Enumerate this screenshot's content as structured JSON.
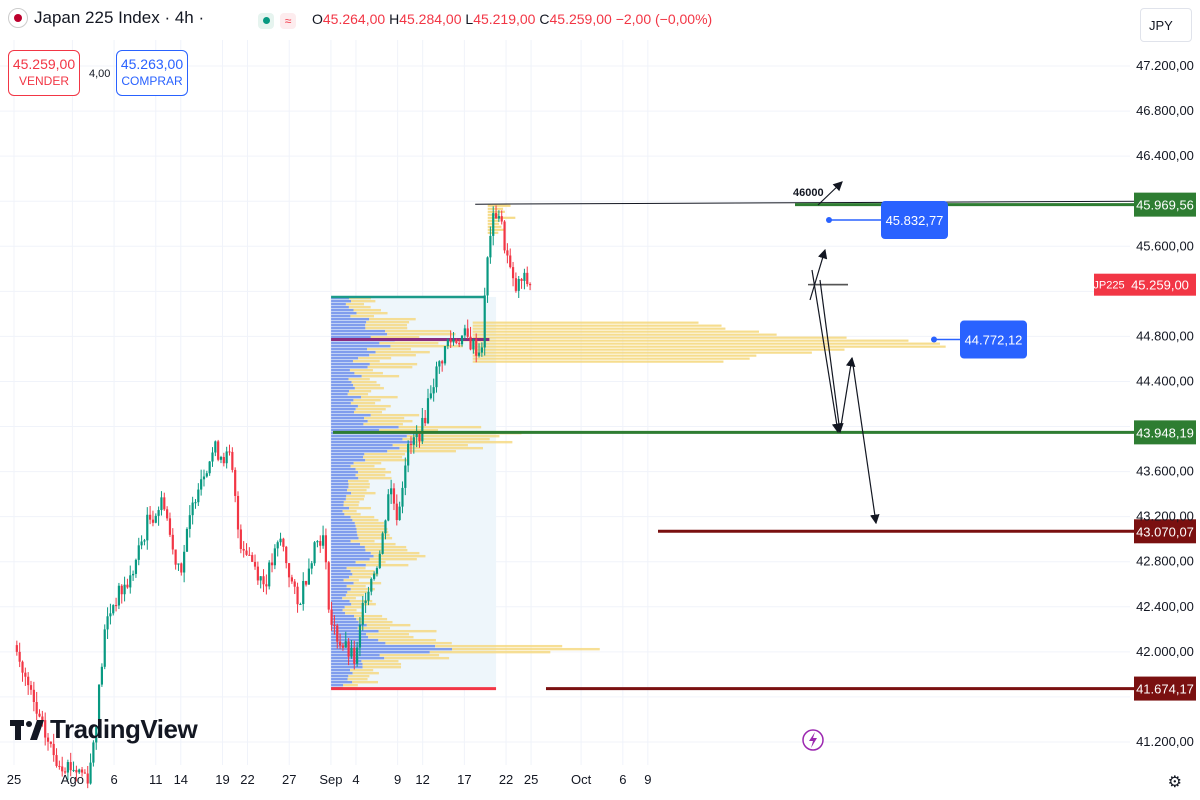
{
  "header": {
    "title": "Japan 225 Index · 4h ·",
    "ohlc": {
      "o_label": "O",
      "o": "45.264,00",
      "h_label": "H",
      "h": "45.284,00",
      "l_label": "L",
      "l": "45.219,00",
      "c_label": "C",
      "c": "45.259,00",
      "change": "−2,00 (−0,00%)"
    },
    "indicator_icons": [
      "green-dot-icon",
      "wave-icon"
    ]
  },
  "trade": {
    "sell_price": "45.259,00",
    "sell_label": "VENDER",
    "spread": "4,00",
    "buy_price": "45.263,00",
    "buy_label": "COMPRAR"
  },
  "currency": "JPY",
  "logo": {
    "text": "TradingView"
  },
  "colors": {
    "up": "#089981",
    "down": "#f23645",
    "profile_blue": "#5b7fe8",
    "profile_yellow": "#f5d77a",
    "level_green": "#2e7d32",
    "level_red": "#7a1010"
  },
  "chart_data": {
    "type": "candlestick",
    "symbol": "JP225",
    "timeframe": "4h",
    "ylim": [
      41000,
      47400
    ],
    "y_ticks": [
      "47.200,00",
      "46.800,00",
      "46.400,00",
      "45.600,00",
      "44.800,00",
      "44.400,00",
      "43.600,00",
      "43.200,00",
      "42.800,00",
      "42.400,00",
      "42.000,00",
      "41.200,00"
    ],
    "x_ticks": [
      {
        "label": "25",
        "day": 0
      },
      {
        "label": "Ago",
        "day": 7
      },
      {
        "label": "6",
        "day": 12
      },
      {
        "label": "11",
        "day": 17
      },
      {
        "label": "14",
        "day": 20
      },
      {
        "label": "19",
        "day": 25
      },
      {
        "label": "22",
        "day": 28
      },
      {
        "label": "27",
        "day": 33
      },
      {
        "label": "Sep",
        "day": 38
      },
      {
        "label": "4",
        "day": 41
      },
      {
        "label": "9",
        "day": 46
      },
      {
        "label": "12",
        "day": 49
      },
      {
        "label": "17",
        "day": 54
      },
      {
        "label": "22",
        "day": 59
      },
      {
        "label": "25",
        "day": 62
      },
      {
        "label": "Oct",
        "day": 68
      },
      {
        "label": "6",
        "day": 73
      },
      {
        "label": "9",
        "day": 76
      }
    ],
    "price_path": [
      [
        0,
        42060
      ],
      [
        3,
        41380
      ],
      [
        5,
        41050
      ],
      [
        9,
        40900
      ],
      [
        10,
        41500
      ],
      [
        11,
        42250
      ],
      [
        12,
        42450
      ],
      [
        14,
        42650
      ],
      [
        16,
        43150
      ],
      [
        18,
        43350
      ],
      [
        19,
        42900
      ],
      [
        20,
        42750
      ],
      [
        22,
        43500
      ],
      [
        24,
        43800
      ],
      [
        26,
        43700
      ],
      [
        27,
        43000
      ],
      [
        28,
        42900
      ],
      [
        30,
        42600
      ],
      [
        32,
        43000
      ],
      [
        34,
        42400
      ],
      [
        36,
        42950
      ],
      [
        37,
        43050
      ],
      [
        38,
        42250
      ],
      [
        39,
        42100
      ],
      [
        41,
        41900
      ],
      [
        42,
        42500
      ],
      [
        44,
        42900
      ],
      [
        45,
        43500
      ],
      [
        46,
        43200
      ],
      [
        47,
        43750
      ],
      [
        49,
        44000
      ],
      [
        50,
        44350
      ],
      [
        52,
        44750
      ],
      [
        54,
        44800
      ],
      [
        56,
        44650
      ],
      [
        57,
        45700
      ],
      [
        58,
        45950
      ],
      [
        59,
        45550
      ],
      [
        60,
        45200
      ],
      [
        61,
        45300
      ],
      [
        62,
        45259
      ]
    ],
    "levels": [
      {
        "value": 46000,
        "label": "46000",
        "style": "thin-black"
      },
      {
        "value": 45969.56,
        "label": "45.969,56",
        "color": "green"
      },
      {
        "value": 45832.77,
        "label": "45.832,77",
        "style": "callout"
      },
      {
        "value": 45259.0,
        "label": "45.259,00",
        "tag": "JP225",
        "style": "current-price"
      },
      {
        "value": 44772.12,
        "label": "44.772,12",
        "style": "callout"
      },
      {
        "value": 43948.19,
        "label": "43.948,19",
        "color": "green"
      },
      {
        "value": 43070.07,
        "label": "43.070,07",
        "color": "red"
      },
      {
        "value": 41674.17,
        "label": "41.674,17",
        "color": "red"
      }
    ],
    "volume_profile": {
      "from_day": 38.5,
      "to_day": 59,
      "low": 41674,
      "high": 45150,
      "poc": 44772
    }
  }
}
